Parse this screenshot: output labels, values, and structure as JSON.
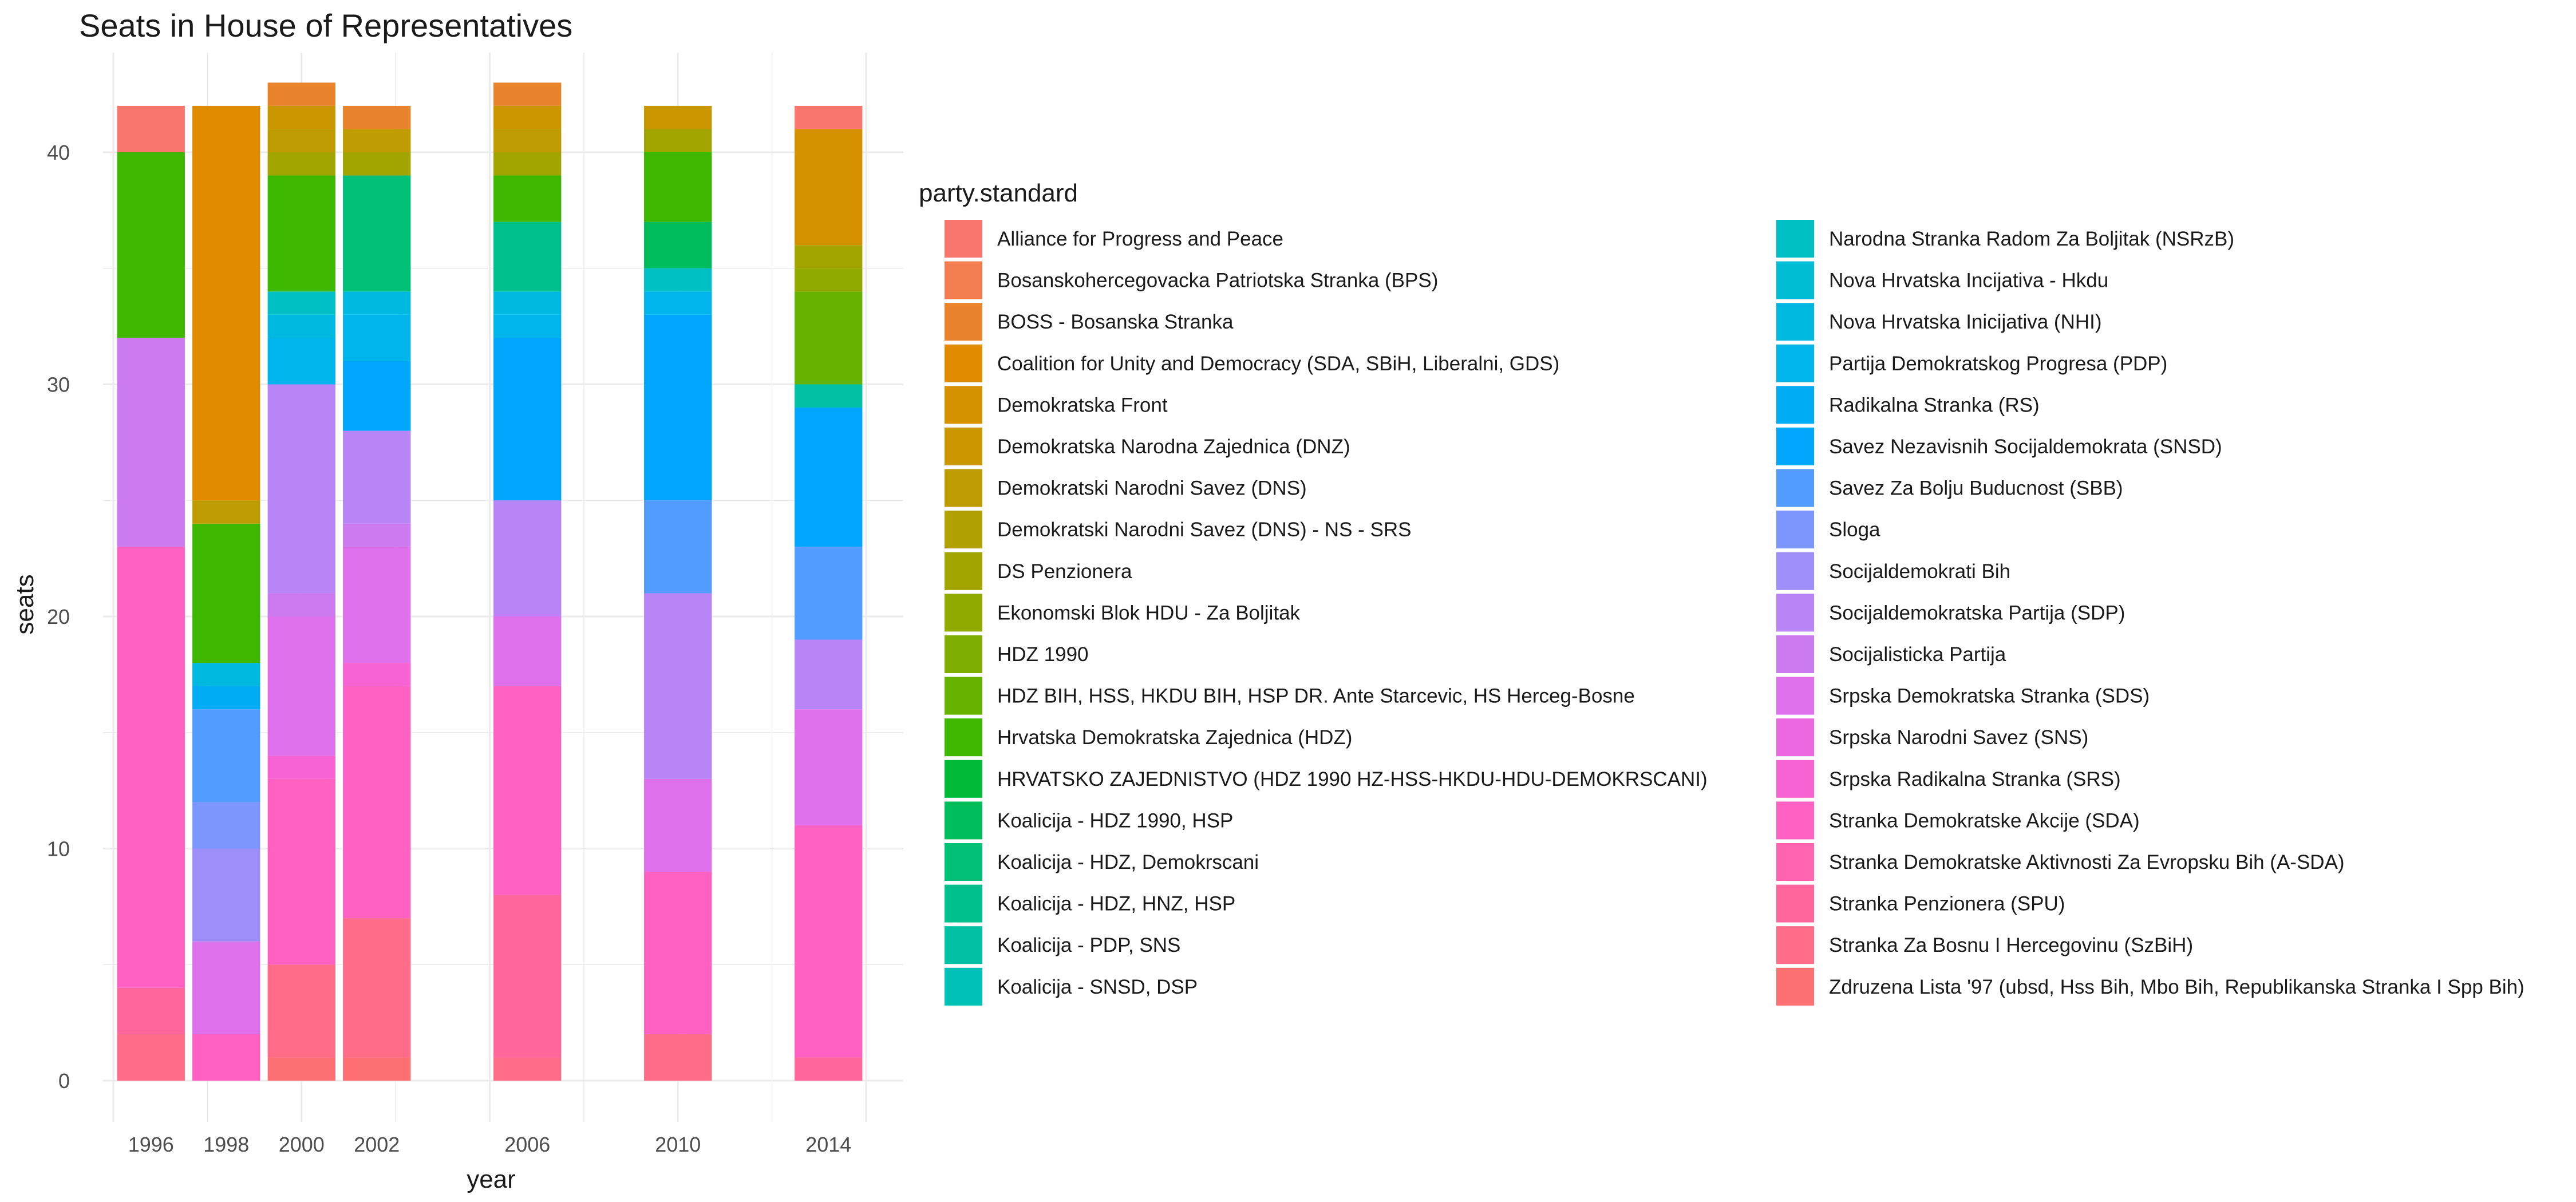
{
  "chart_data": {
    "type": "bar",
    "stacked": true,
    "title": "Seats in House of Representatives",
    "xlabel": "year",
    "ylabel": "seats",
    "x": [
      1996,
      1998,
      2000,
      2002,
      2006,
      2010,
      2014
    ],
    "x_ticks": [
      "1996",
      "1998",
      "2000",
      "2002",
      "2006",
      "2010",
      "2014"
    ],
    "xlim": [
      1995,
      2015
    ],
    "ylim": [
      0,
      42
    ],
    "y_ticks": [
      "0",
      "10",
      "20",
      "30",
      "40"
    ],
    "grid": true,
    "legend_title": "party.standard",
    "legend_position": "right",
    "legend_columns": 2,
    "parties": [
      {
        "name": "Alliance for Progress and Peace",
        "color": "#F8766D"
      },
      {
        "name": "Bosanskohercegovacka Patriotska Stranka (BPS)",
        "color": "#F17D51"
      },
      {
        "name": "BOSS - Bosanska Stranka",
        "color": "#E9842C"
      },
      {
        "name": "Coalition for Unity and Democracy (SDA, SBiH, Liberalni, GDS)",
        "color": "#E08B00"
      },
      {
        "name": "Demokratska Front",
        "color": "#D59100"
      },
      {
        "name": "Demokratska Narodna Zajednica (DNZ)",
        "color": "#CA9700"
      },
      {
        "name": "Demokratski Narodni Savez (DNS)",
        "color": "#BE9C00"
      },
      {
        "name": "Demokratski Narodni Savez (DNS) - NS - SRS",
        "color": "#B1A100"
      },
      {
        "name": "DS Penzionera",
        "color": "#A2A500"
      },
      {
        "name": "Ekonomski Blok HDU - Za Boljitak",
        "color": "#92AA00"
      },
      {
        "name": "HDZ 1990",
        "color": "#7FAE00"
      },
      {
        "name": "HDZ BIH, HSS, HKDU BIH, HSP DR. Ante Starcevic, HS Herceg-Bosne",
        "color": "#66B200"
      },
      {
        "name": "Hrvatska Demokratska Zajednica (HDZ)",
        "color": "#3DB700"
      },
      {
        "name": "HRVATSKO ZAJEDNISTVO (HDZ 1990 HZ-HSS-HKDU-HDU-DEMOKRSCANI)",
        "color": "#00BA38"
      },
      {
        "name": "Koalicija - HDZ 1990, HSP",
        "color": "#00BD5C"
      },
      {
        "name": "Koalicija - HDZ, Demokrscani",
        "color": "#00BF77"
      },
      {
        "name": "Koalicija - HDZ, HNZ, HSP",
        "color": "#00C08E"
      },
      {
        "name": "Koalicija - PDP, SNS",
        "color": "#00C1A3"
      },
      {
        "name": "Koalicija - SNSD, DSP",
        "color": "#00C1B5"
      },
      {
        "name": "Narodna Stranka Radom Za Boljitak (NSRzB)",
        "color": "#00C0C6"
      },
      {
        "name": "Nova Hrvatska Incijativa - Hkdu",
        "color": "#00BDD4"
      },
      {
        "name": "Nova Hrvatska Inicijativa (NHI)",
        "color": "#00B9E1"
      },
      {
        "name": "Partija Demokratskog Progresa (PDP)",
        "color": "#00B4EC"
      },
      {
        "name": "Radikalna Stranka (RS)",
        "color": "#00ADF5"
      },
      {
        "name": "Savez Nezavisnih Socijaldemokrata (SNSD)",
        "color": "#00A5FC"
      },
      {
        "name": "Savez Za Bolju Buducnost (SBB)",
        "color": "#529BFF"
      },
      {
        "name": "Sloga",
        "color": "#7C96FE"
      },
      {
        "name": "Socijaldemokrati Bih",
        "color": "#9E8EF9"
      },
      {
        "name": "Socijaldemokratska Partija (SDP)",
        "color": "#B785F5"
      },
      {
        "name": "Socijalisticka Partija",
        "color": "#CC7AF0"
      },
      {
        "name": "Srpska Demokratska Stranka (SDS)",
        "color": "#DE70EB"
      },
      {
        "name": "Srpska Narodni Savez (SNS)",
        "color": "#EC68E1"
      },
      {
        "name": "Srpska Radikalna Stranka (SRS)",
        "color": "#F763D3"
      },
      {
        "name": "Stranka Demokratske Akcije (SDA)",
        "color": "#FF61C3"
      },
      {
        "name": "Stranka Demokratske Aktivnosti Za Evropsku Bih (A-SDA)",
        "color": "#FF64B0"
      },
      {
        "name": "Stranka Penzionera (SPU)",
        "color": "#FF679C"
      },
      {
        "name": "Stranka Za Bosnu I Hercegovinu (SzBiH)",
        "color": "#FF6C88"
      },
      {
        "name": "Zdruzena Lista '97 (ubsd, Hss Bih, Mbo Bih, Republikanska Stranka I Spp Bih)",
        "color": "#FC7073"
      }
    ],
    "stacks": [
      {
        "year": 1996,
        "segments": [
          {
            "party": "Stranka Za Bosnu I Hercegovinu (SzBiH)",
            "seats": 2
          },
          {
            "party": "Stranka Penzionera (SPU)",
            "seats": 2
          },
          {
            "party": "Stranka Demokratske Akcije (SDA)",
            "seats": 19
          },
          {
            "party": "Socijalisticka Partija",
            "seats": 9
          },
          {
            "party": "Hrvatska Demokratska Zajednica (HDZ)",
            "seats": 8
          },
          {
            "party": "Alliance for Progress and Peace",
            "seats": 2
          }
        ]
      },
      {
        "year": 1998,
        "segments": [
          {
            "party": "Stranka Demokratske Akcije (SDA)",
            "seats": 2
          },
          {
            "party": "Srpska Demokratska Stranka (SDS)",
            "seats": 4
          },
          {
            "party": "Socijaldemokrati Bih",
            "seats": 4
          },
          {
            "party": "Sloga",
            "seats": 2
          },
          {
            "party": "Savez Za Bolju Buducnost (SBB)",
            "seats": 4
          },
          {
            "party": "Radikalna Stranka (RS)",
            "seats": 1
          },
          {
            "party": "Nova Hrvatska Inicijativa (NHI)",
            "seats": 1
          },
          {
            "party": "Hrvatska Demokratska Zajednica (HDZ)",
            "seats": 6
          },
          {
            "party": "Demokratski Narodni Savez (DNS)",
            "seats": 1
          },
          {
            "party": "Coalition for Unity and Democracy (SDA, SBiH, Liberalni, GDS)",
            "seats": 17
          }
        ]
      },
      {
        "year": 2000,
        "segments": [
          {
            "party": "Zdruzena Lista '97 (ubsd, Hss Bih, Mbo Bih, Republikanska Stranka I Spp Bih)",
            "seats": 1
          },
          {
            "party": "Stranka Za Bosnu I Hercegovinu (SzBiH)",
            "seats": 4
          },
          {
            "party": "Stranka Demokratske Akcije (SDA)",
            "seats": 8
          },
          {
            "party": "Srpska Radikalna Stranka (SRS)",
            "seats": 1
          },
          {
            "party": "Srpska Demokratska Stranka (SDS)",
            "seats": 6
          },
          {
            "party": "Socijalisticka Partija",
            "seats": 1
          },
          {
            "party": "Socijaldemokratska Partija (SDP)",
            "seats": 9
          },
          {
            "party": "Partija Demokratskog Progresa (PDP)",
            "seats": 2
          },
          {
            "party": "Nova Hrvatska Inicijativa (NHI)",
            "seats": 1
          },
          {
            "party": "Narodna Stranka Radom Za Boljitak (NSRzB)",
            "seats": 1
          },
          {
            "party": "Hrvatska Demokratska Zajednica (HDZ)",
            "seats": 5
          },
          {
            "party": "DS Penzionera",
            "seats": 1
          },
          {
            "party": "Demokratski Narodni Savez (DNS)",
            "seats": 1
          },
          {
            "party": "Demokratska Narodna Zajednica (DNZ)",
            "seats": 1
          },
          {
            "party": "BOSS - Bosanska Stranka",
            "seats": 1
          }
        ]
      },
      {
        "year": 2002,
        "segments": [
          {
            "party": "Zdruzena Lista '97 (ubsd, Hss Bih, Mbo Bih, Republikanska Stranka I Spp Bih)",
            "seats": 1
          },
          {
            "party": "Stranka Za Bosnu I Hercegovinu (SzBiH)",
            "seats": 6
          },
          {
            "party": "Stranka Demokratske Akcije (SDA)",
            "seats": 10
          },
          {
            "party": "Srpska Radikalna Stranka (SRS)",
            "seats": 1
          },
          {
            "party": "Srpska Demokratska Stranka (SDS)",
            "seats": 5
          },
          {
            "party": "Socijalisticka Partija",
            "seats": 1
          },
          {
            "party": "Socijaldemokratska Partija (SDP)",
            "seats": 4
          },
          {
            "party": "Savez Nezavisnih Socijaldemokrata (SNSD)",
            "seats": 3
          },
          {
            "party": "Partija Demokratskog Progresa (PDP)",
            "seats": 2
          },
          {
            "party": "Nova Hrvatska Inicijativa (NHI)",
            "seats": 1
          },
          {
            "party": "Koalicija - HDZ, Demokrscani",
            "seats": 5
          },
          {
            "party": "DS Penzionera",
            "seats": 1
          },
          {
            "party": "Demokratski Narodni Savez (DNS)",
            "seats": 1
          },
          {
            "party": "BOSS - Bosanska Stranka",
            "seats": 1
          }
        ]
      },
      {
        "year": 2006,
        "segments": [
          {
            "party": "Stranka Za Bosnu I Hercegovinu (SzBiH)",
            "seats": 1
          },
          {
            "party": "Stranka Penzionera (SPU)",
            "seats": 7
          },
          {
            "party": "Stranka Demokratske Akcije (SDA)",
            "seats": 9
          },
          {
            "party": "Srpska Demokratska Stranka (SDS)",
            "seats": 3
          },
          {
            "party": "Socijaldemokratska Partija (SDP)",
            "seats": 5
          },
          {
            "party": "Savez Nezavisnih Socijaldemokrata (SNSD)",
            "seats": 7
          },
          {
            "party": "Partija Demokratskog Progresa (PDP)",
            "seats": 1
          },
          {
            "party": "Nova Hrvatska Inicijativa (NHI)",
            "seats": 1
          },
          {
            "party": "Koalicija - HDZ, HNZ, HSP",
            "seats": 3
          },
          {
            "party": "Hrvatska Demokratska Zajednica (HDZ)",
            "seats": 2
          },
          {
            "party": "DS Penzionera",
            "seats": 1
          },
          {
            "party": "Demokratski Narodni Savez (DNS)",
            "seats": 1
          },
          {
            "party": "Demokratska Narodna Zajednica (DNZ)",
            "seats": 1
          },
          {
            "party": "BOSS - Bosanska Stranka",
            "seats": 1
          }
        ]
      },
      {
        "year": 2010,
        "segments": [
          {
            "party": "Stranka Za Bosnu I Hercegovinu (SzBiH)",
            "seats": 2
          },
          {
            "party": "Stranka Demokratske Akcije (SDA)",
            "seats": 7
          },
          {
            "party": "Srpska Demokratska Stranka (SDS)",
            "seats": 4
          },
          {
            "party": "Socijaldemokratska Partija (SDP)",
            "seats": 8
          },
          {
            "party": "Savez Za Bolju Buducnost (SBB)",
            "seats": 4
          },
          {
            "party": "Savez Nezavisnih Socijaldemokrata (SNSD)",
            "seats": 8
          },
          {
            "party": "Partija Demokratskog Progresa (PDP)",
            "seats": 1
          },
          {
            "party": "Narodna Stranka Radom Za Boljitak (NSRzB)",
            "seats": 1
          },
          {
            "party": "Koalicija - HDZ 1990, HSP",
            "seats": 2
          },
          {
            "party": "Hrvatska Demokratska Zajednica (HDZ)",
            "seats": 3
          },
          {
            "party": "DS Penzionera",
            "seats": 1
          },
          {
            "party": "Demokratska Narodna Zajednica (DNZ)",
            "seats": 1
          }
        ]
      },
      {
        "year": 2014,
        "segments": [
          {
            "party": "Stranka Penzionera (SPU)",
            "seats": 1
          },
          {
            "party": "Stranka Demokratske Akcije (SDA)",
            "seats": 10
          },
          {
            "party": "Srpska Demokratska Stranka (SDS)",
            "seats": 5
          },
          {
            "party": "Socijaldemokratska Partija (SDP)",
            "seats": 3
          },
          {
            "party": "Savez Za Bolju Buducnost (SBB)",
            "seats": 4
          },
          {
            "party": "Savez Nezavisnih Socijaldemokrata (SNSD)",
            "seats": 6
          },
          {
            "party": "Koalicija - PDP, SNS",
            "seats": 1
          },
          {
            "party": "HDZ BIH, HSS, HKDU BIH, HSP DR. Ante Starcevic, HS Herceg-Bosne",
            "seats": 4
          },
          {
            "party": "Ekonomski Blok HDU - Za Boljitak",
            "seats": 1
          },
          {
            "party": "DS Penzionera",
            "seats": 1
          },
          {
            "party": "Demokratska Front",
            "seats": 5
          },
          {
            "party": "Alliance for Progress and Peace",
            "seats": 1
          }
        ]
      }
    ]
  }
}
